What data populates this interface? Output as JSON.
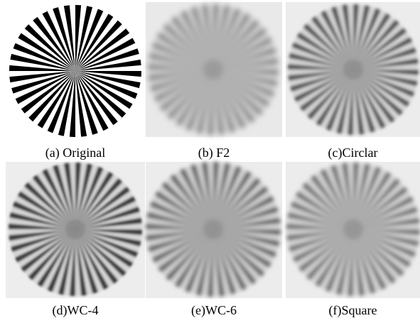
{
  "panels": [
    {
      "caption": "(a) Original"
    },
    {
      "caption": "(b) F2"
    },
    {
      "caption": "(c)Circlar"
    },
    {
      "caption": "(d)WC-4"
    },
    {
      "caption": "(e)WC-6"
    },
    {
      "caption": "(f)Square"
    }
  ]
}
